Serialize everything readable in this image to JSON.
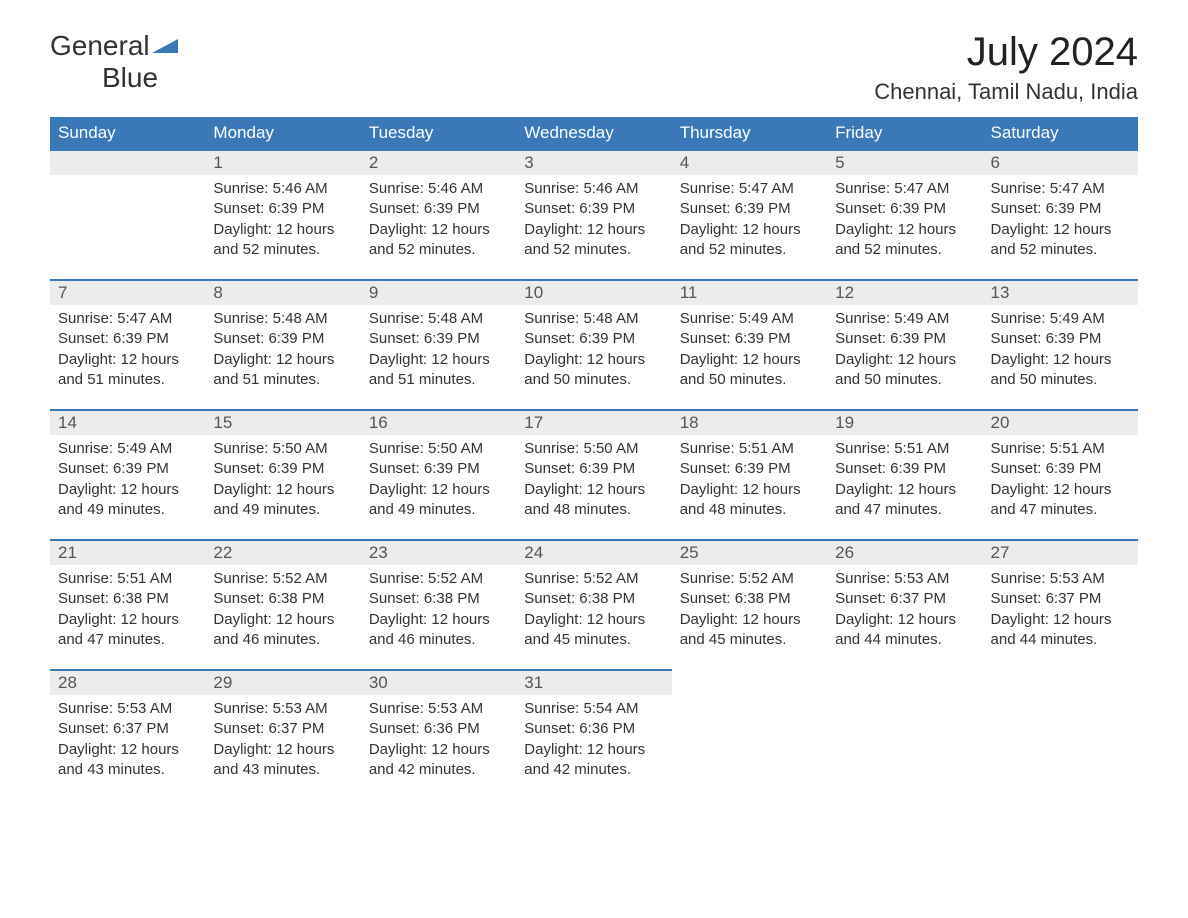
{
  "logo": {
    "word1": "General",
    "word2": "Blue"
  },
  "title": "July 2024",
  "location": "Chennai, Tamil Nadu, India",
  "colors": {
    "header_bg": "#3a78b8",
    "header_text": "#ffffff",
    "day_bg": "#ececec",
    "day_border": "#3a78b8",
    "text": "#333333",
    "background": "#ffffff"
  },
  "weekdays": [
    "Sunday",
    "Monday",
    "Tuesday",
    "Wednesday",
    "Thursday",
    "Friday",
    "Saturday"
  ],
  "first_weekday_index": 1,
  "days": [
    {
      "n": 1,
      "sunrise": "5:46 AM",
      "sunset": "6:39 PM",
      "daylight": "12 hours and 52 minutes."
    },
    {
      "n": 2,
      "sunrise": "5:46 AM",
      "sunset": "6:39 PM",
      "daylight": "12 hours and 52 minutes."
    },
    {
      "n": 3,
      "sunrise": "5:46 AM",
      "sunset": "6:39 PM",
      "daylight": "12 hours and 52 minutes."
    },
    {
      "n": 4,
      "sunrise": "5:47 AM",
      "sunset": "6:39 PM",
      "daylight": "12 hours and 52 minutes."
    },
    {
      "n": 5,
      "sunrise": "5:47 AM",
      "sunset": "6:39 PM",
      "daylight": "12 hours and 52 minutes."
    },
    {
      "n": 6,
      "sunrise": "5:47 AM",
      "sunset": "6:39 PM",
      "daylight": "12 hours and 52 minutes."
    },
    {
      "n": 7,
      "sunrise": "5:47 AM",
      "sunset": "6:39 PM",
      "daylight": "12 hours and 51 minutes."
    },
    {
      "n": 8,
      "sunrise": "5:48 AM",
      "sunset": "6:39 PM",
      "daylight": "12 hours and 51 minutes."
    },
    {
      "n": 9,
      "sunrise": "5:48 AM",
      "sunset": "6:39 PM",
      "daylight": "12 hours and 51 minutes."
    },
    {
      "n": 10,
      "sunrise": "5:48 AM",
      "sunset": "6:39 PM",
      "daylight": "12 hours and 50 minutes."
    },
    {
      "n": 11,
      "sunrise": "5:49 AM",
      "sunset": "6:39 PM",
      "daylight": "12 hours and 50 minutes."
    },
    {
      "n": 12,
      "sunrise": "5:49 AM",
      "sunset": "6:39 PM",
      "daylight": "12 hours and 50 minutes."
    },
    {
      "n": 13,
      "sunrise": "5:49 AM",
      "sunset": "6:39 PM",
      "daylight": "12 hours and 50 minutes."
    },
    {
      "n": 14,
      "sunrise": "5:49 AM",
      "sunset": "6:39 PM",
      "daylight": "12 hours and 49 minutes."
    },
    {
      "n": 15,
      "sunrise": "5:50 AM",
      "sunset": "6:39 PM",
      "daylight": "12 hours and 49 minutes."
    },
    {
      "n": 16,
      "sunrise": "5:50 AM",
      "sunset": "6:39 PM",
      "daylight": "12 hours and 49 minutes."
    },
    {
      "n": 17,
      "sunrise": "5:50 AM",
      "sunset": "6:39 PM",
      "daylight": "12 hours and 48 minutes."
    },
    {
      "n": 18,
      "sunrise": "5:51 AM",
      "sunset": "6:39 PM",
      "daylight": "12 hours and 48 minutes."
    },
    {
      "n": 19,
      "sunrise": "5:51 AM",
      "sunset": "6:39 PM",
      "daylight": "12 hours and 47 minutes."
    },
    {
      "n": 20,
      "sunrise": "5:51 AM",
      "sunset": "6:39 PM",
      "daylight": "12 hours and 47 minutes."
    },
    {
      "n": 21,
      "sunrise": "5:51 AM",
      "sunset": "6:38 PM",
      "daylight": "12 hours and 47 minutes."
    },
    {
      "n": 22,
      "sunrise": "5:52 AM",
      "sunset": "6:38 PM",
      "daylight": "12 hours and 46 minutes."
    },
    {
      "n": 23,
      "sunrise": "5:52 AM",
      "sunset": "6:38 PM",
      "daylight": "12 hours and 46 minutes."
    },
    {
      "n": 24,
      "sunrise": "5:52 AM",
      "sunset": "6:38 PM",
      "daylight": "12 hours and 45 minutes."
    },
    {
      "n": 25,
      "sunrise": "5:52 AM",
      "sunset": "6:38 PM",
      "daylight": "12 hours and 45 minutes."
    },
    {
      "n": 26,
      "sunrise": "5:53 AM",
      "sunset": "6:37 PM",
      "daylight": "12 hours and 44 minutes."
    },
    {
      "n": 27,
      "sunrise": "5:53 AM",
      "sunset": "6:37 PM",
      "daylight": "12 hours and 44 minutes."
    },
    {
      "n": 28,
      "sunrise": "5:53 AM",
      "sunset": "6:37 PM",
      "daylight": "12 hours and 43 minutes."
    },
    {
      "n": 29,
      "sunrise": "5:53 AM",
      "sunset": "6:37 PM",
      "daylight": "12 hours and 43 minutes."
    },
    {
      "n": 30,
      "sunrise": "5:53 AM",
      "sunset": "6:36 PM",
      "daylight": "12 hours and 42 minutes."
    },
    {
      "n": 31,
      "sunrise": "5:54 AM",
      "sunset": "6:36 PM",
      "daylight": "12 hours and 42 minutes."
    }
  ],
  "labels": {
    "sunrise": "Sunrise: ",
    "sunset": "Sunset: ",
    "daylight": "Daylight: "
  }
}
